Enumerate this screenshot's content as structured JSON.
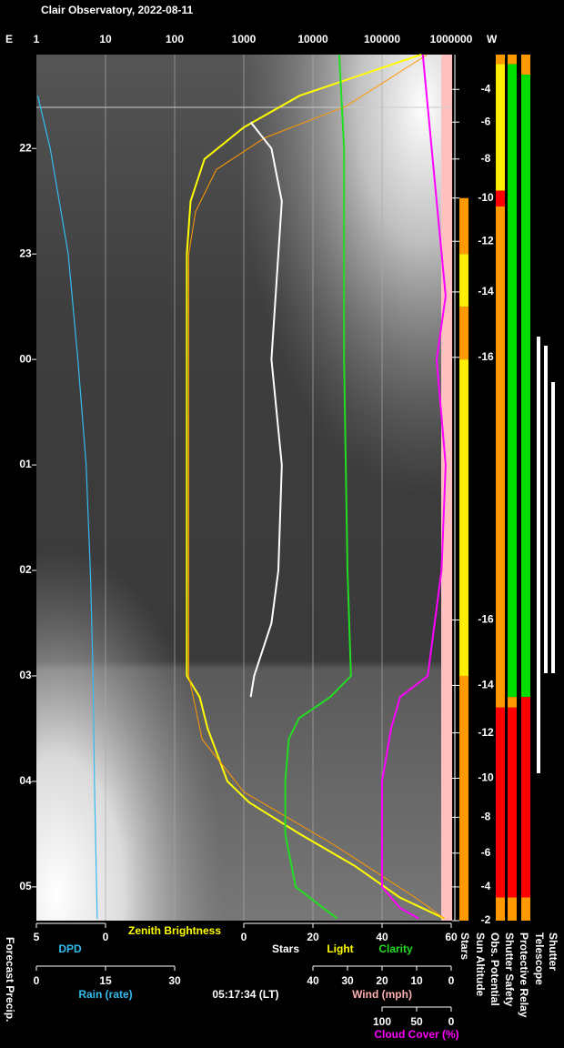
{
  "title": "Clair Observatory, 2022-08-11",
  "east": "E",
  "west": "W",
  "time_axis": {
    "lim": [
      21.11,
      29.32
    ],
    "ticks": [
      22,
      23,
      {
        "value": 24,
        "label": "00"
      },
      {
        "value": 25,
        "label": "01"
      },
      {
        "value": 26,
        "label": "02"
      },
      {
        "value": 27,
        "label": "03"
      },
      {
        "value": 28,
        "label": "04"
      },
      {
        "value": 29,
        "label": "05"
      }
    ]
  },
  "sun_altitude": {
    "ticks": [
      {
        "value": 21.44,
        "label": "-4"
      },
      {
        "value": 21.75,
        "label": "-6"
      },
      {
        "value": 22.1,
        "label": "-8"
      },
      {
        "value": 22.47,
        "label": "-10"
      },
      {
        "value": 22.88,
        "label": "-12"
      },
      {
        "value": 23.36,
        "label": "-14"
      },
      {
        "value": 23.98,
        "label": "-16"
      },
      {
        "value": 26.47,
        "label": "-16"
      },
      {
        "value": 27.09,
        "label": "-14"
      },
      {
        "value": 27.54,
        "label": "-12"
      },
      {
        "value": 27.97,
        "label": "-10"
      },
      {
        "value": 28.34,
        "label": "-8"
      },
      {
        "value": 28.68,
        "label": "-6"
      },
      {
        "value": 29.0,
        "label": "-4"
      },
      {
        "value": 29.32,
        "label": "-2"
      }
    ]
  },
  "brightness": {
    "lim": [
      1,
      1000000
    ],
    "log": true,
    "ticks": [
      1,
      10,
      100,
      1000,
      10000,
      100000,
      1000000
    ],
    "series": [
      {
        "name": "Zenith Brightness",
        "color": "#ffff00",
        "t": [
          21.11,
          21.5,
          21.8,
          22.1,
          22.5,
          23.0,
          27.0,
          27.2,
          27.5,
          28.0,
          28.2,
          28.5,
          28.8,
          29.1,
          29.3
        ],
        "values": [
          370000,
          6400,
          1000,
          270,
          170,
          150,
          150,
          230,
          300,
          580,
          1200,
          6500,
          40000,
          180000,
          800000
        ]
      },
      {
        "name": "Light",
        "color": "#ff9900",
        "t": [
          21.11,
          21.6,
          21.9,
          22.2,
          22.6,
          23.0,
          27.0,
          27.6,
          28.1,
          28.6,
          29.1,
          29.3
        ],
        "values": [
          450000,
          30000,
          2000,
          400,
          200,
          160,
          160,
          250,
          1000,
          20000,
          300000,
          800000
        ]
      }
    ]
  },
  "dpd": {
    "lim": [
      5,
      0
    ],
    "ticks": [
      5,
      0
    ],
    "series": [
      {
        "name": "DPD",
        "color": "#33bbee",
        "t": [
          21.5,
          22,
          23,
          24,
          25,
          26,
          27,
          28,
          29.3
        ],
        "values": [
          4.9,
          4.0,
          2.7,
          2.0,
          1.4,
          1.1,
          0.9,
          0.8,
          0.6
        ]
      }
    ]
  },
  "stars_scale": {
    "lim": [
      0,
      60
    ],
    "ticks": [
      0,
      20,
      40,
      60
    ],
    "series": [
      {
        "name": "Stars",
        "color": "#ffffff",
        "t": [
          21.75,
          22.0,
          22.5,
          23.0,
          24.0,
          25.0,
          26.0,
          26.5,
          27.0,
          27.2
        ],
        "values": [
          2,
          8,
          11,
          10,
          8,
          11,
          10,
          8,
          3,
          2
        ]
      },
      {
        "name": "Clarity",
        "color": "#22dd22",
        "t": [
          21.11,
          22,
          24,
          26,
          27.0,
          27.2,
          27.4,
          27.6,
          28.0,
          28.5,
          29.0,
          29.3
        ],
        "values": [
          27.6,
          29,
          29,
          30,
          31,
          25,
          16,
          13,
          12,
          12,
          15,
          27
        ]
      }
    ]
  },
  "cloud": {
    "name": "Cloud Cover (%)",
    "color": "#ff00ff",
    "lim": [
      100,
      0
    ],
    "ticks": [
      100,
      50,
      0
    ],
    "t": [
      21.11,
      22.5,
      23.4,
      24,
      25,
      26,
      27,
      27.2,
      27.5,
      28,
      29,
      29.2,
      29.3
    ],
    "values": [
      41,
      21,
      8,
      21,
      8,
      14,
      34,
      74,
      87,
      100,
      100,
      74,
      47
    ]
  },
  "rain": {
    "name": "Rain (rate)",
    "lim": [
      0,
      30
    ],
    "ticks": [
      0,
      15,
      30
    ]
  },
  "wind": {
    "name": "Wind (mph)",
    "lim": [
      40,
      0
    ],
    "ticks": [
      40,
      30,
      20,
      10,
      0
    ]
  },
  "time_stamp": "05:17:34 (LT)",
  "forecast": "Forecast Precip.",
  "sun_label": "Sun Altitude",
  "telescope": "Telescope",
  "shutter": "Shutter",
  "status": [
    {
      "label": "Stars",
      "segments": [
        {
          "from": 22.47,
          "to": 23.0,
          "color": "#ff9900"
        },
        {
          "from": 23.0,
          "to": 23.5,
          "color": "#ffee00"
        },
        {
          "from": 23.5,
          "to": 24.0,
          "color": "#ff9900"
        },
        {
          "from": 24.0,
          "to": 27.0,
          "color": "#ffee00"
        },
        {
          "from": 27.0,
          "to": 29.32,
          "color": "#ff9900"
        }
      ]
    },
    {
      "label": "Obs. Potential",
      "segments": [
        {
          "from": 21.11,
          "to": 21.2,
          "color": "#ff9900"
        },
        {
          "from": 21.2,
          "to": 22.4,
          "color": "#ffee00"
        },
        {
          "from": 22.4,
          "to": 22.55,
          "color": "#ff0000"
        },
        {
          "from": 22.55,
          "to": 27.3,
          "color": "#ff9900"
        },
        {
          "from": 27.3,
          "to": 29.1,
          "color": "#ff0000"
        },
        {
          "from": 29.1,
          "to": 29.32,
          "color": "#ff9900"
        }
      ]
    },
    {
      "label": "Shutter Safety",
      "segments": [
        {
          "from": 21.11,
          "to": 21.2,
          "color": "#ff9900"
        },
        {
          "from": 21.2,
          "to": 27.2,
          "color": "#00dd00"
        },
        {
          "from": 27.2,
          "to": 27.3,
          "color": "#ff9900"
        },
        {
          "from": 27.3,
          "to": 29.1,
          "color": "#ff0000"
        },
        {
          "from": 29.1,
          "to": 29.32,
          "color": "#ff9900"
        }
      ]
    },
    {
      "label": "Protective Relay",
      "segments": [
        {
          "from": 21.11,
          "to": 21.3,
          "color": "#ff9900"
        },
        {
          "from": 21.3,
          "to": 27.2,
          "color": "#00dd00"
        },
        {
          "from": 27.2,
          "to": 29.1,
          "color": "#ff0000"
        },
        {
          "from": 29.1,
          "to": 29.32,
          "color": "#ff9900"
        }
      ]
    }
  ]
}
